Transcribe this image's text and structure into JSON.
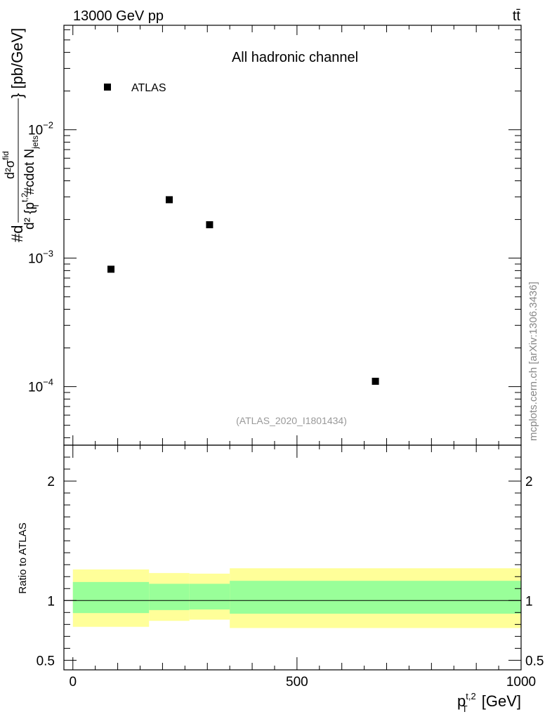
{
  "header": {
    "energy_label": "13000 GeV pp",
    "process_label": "tt̄"
  },
  "watermark": "mcplots.cern.ch [arXiv:1306.3436]",
  "chart_data": [
    {
      "type": "scatter",
      "title": "All hadronic channel",
      "ylabel": "#d\\frac{d^2σ^{fid}}{d^2 {p_T^{t,2} #cdot N_{jets}} [pb/GeV]",
      "ylabel_parts": {
        "prefix": "#d",
        "numerator": "d²σ",
        "numerator_sup": "fid",
        "denominator": "d² {p",
        "denominator_sup": "t,2",
        "denominator_sub": "T",
        "denominator_tail": "#cdot N",
        "denominator_tail_sub": "jets",
        "suffix": "} [pb/GeV]"
      },
      "y_scale": "log",
      "ylim": [
        3.5e-05,
        0.065
      ],
      "xlim": [
        -20,
        1000
      ],
      "yticks": [
        {
          "base": "10",
          "exp": "−2",
          "value": 0.01
        },
        {
          "base": "10",
          "exp": "−3",
          "value": 0.001
        },
        {
          "base": "10",
          "exp": "−4",
          "value": 0.0001
        }
      ],
      "series": [
        {
          "name": "ATLAS",
          "color": "#000000",
          "points": [
            {
              "x": 85,
              "y": 0.00082
            },
            {
              "x": 215,
              "y": 0.00285
            },
            {
              "x": 305,
              "y": 0.00182
            },
            {
              "x": 675,
              "y": 0.00011
            }
          ]
        }
      ],
      "legend": {
        "entry": "ATLAS",
        "placement": "top-left"
      },
      "analysis_label": "(ATLAS_2020_I1801434)"
    },
    {
      "type": "area",
      "ylabel": "Ratio to ATLAS",
      "xlabel": "p_T^{t,2} [GeV]",
      "xlabel_parts": {
        "main": "p",
        "sup": "t,2",
        "sub": "T",
        "suffix": " [GeV]"
      },
      "ylim": [
        0.42,
        2.3
      ],
      "xlim": [
        -20,
        1000
      ],
      "xticks": [
        0,
        500,
        1000
      ],
      "yticks": [
        0.5,
        1,
        2
      ],
      "bins": [
        {
          "x0": 0,
          "x1": 170,
          "inner": [
            0.895,
            1.155
          ],
          "outer": [
            0.78,
            1.26
          ]
        },
        {
          "x0": 170,
          "x1": 260,
          "inner": [
            0.92,
            1.14
          ],
          "outer": [
            0.83,
            1.23
          ]
        },
        {
          "x0": 260,
          "x1": 350,
          "inner": [
            0.925,
            1.14
          ],
          "outer": [
            0.84,
            1.225
          ]
        },
        {
          "x0": 350,
          "x1": 1000,
          "inner": [
            0.89,
            1.165
          ],
          "outer": [
            0.77,
            1.27
          ]
        }
      ],
      "inner_color": "#99ff99",
      "outer_color": "#ffff99",
      "reference": 1
    }
  ]
}
